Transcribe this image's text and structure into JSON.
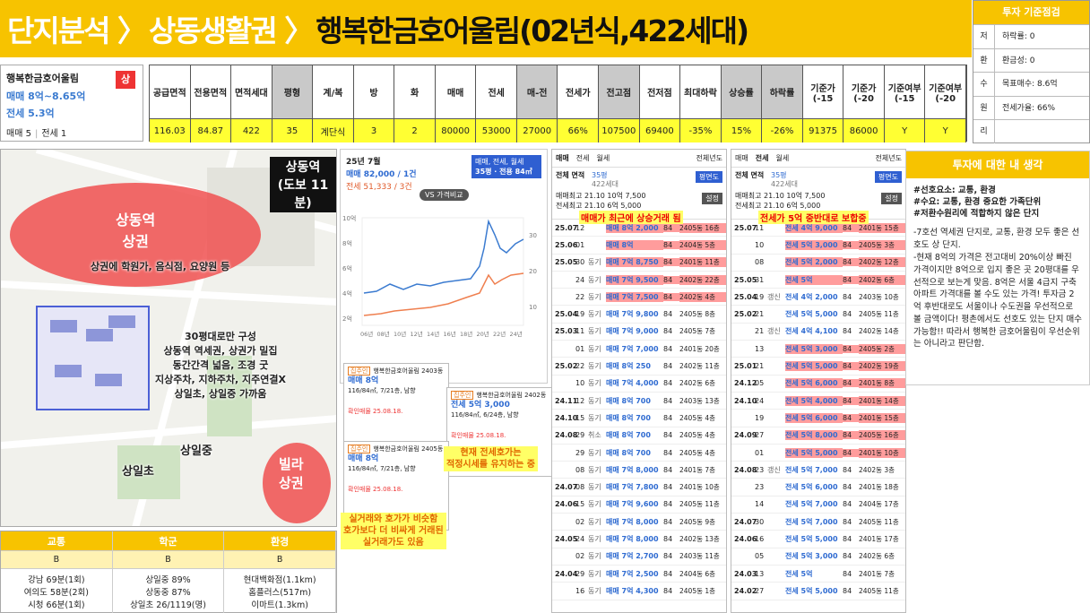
{
  "header": {
    "crumbs": [
      "단지분석 〉",
      "상동생활권 〉",
      "행복한금호어울림(02년식,422세대)"
    ]
  },
  "criteria": {
    "title": "투자 기준점검",
    "rows": [
      {
        "label": "저",
        "value": "하락률: 0"
      },
      {
        "label": "환",
        "value": "환금성: 0"
      },
      {
        "label": "수",
        "value": "목표매수: 8.6억"
      },
      {
        "label": "원",
        "value": "전세가율: 66%"
      },
      {
        "label": "리"
      }
    ]
  },
  "summary": {
    "name": "행복한금호어울림",
    "badge": "상",
    "sale": "매매 8억~8.65억",
    "jeonse": "전세 5.3억",
    "sale_count": "매매 5",
    "jeonse_count": "전세 1"
  },
  "spec_table": {
    "headers": [
      "공급면적",
      "전용면적",
      "면적세대",
      "평형",
      "계/복",
      "방",
      "화",
      "매매",
      "전세",
      "매-전",
      "전세가",
      "전고점",
      "전저점",
      "최대하락",
      "상승률",
      "하락률",
      "기준가(-15",
      "기준가(-20",
      "기준여부(-15",
      "기준여부(-20"
    ],
    "values": [
      "116.03",
      "84.87",
      "422",
      "35",
      "계단식",
      "3",
      "2",
      "80000",
      "53000",
      "27000",
      "66%",
      "107500",
      "69400",
      "-35%",
      "15%",
      "-26%",
      "91375",
      "86000",
      "Y",
      "Y"
    ]
  },
  "map": {
    "labels": [
      "상동역\n(도보 11분)",
      "상동역\n상권",
      "상권에 학원가, 음식점, 요양원 등",
      "30평대로만 구성\n상동역 역세권, 상권가 밀집\n동간간격 넓음, 조경 굿\n지상주차, 지하주차, 지주연결X\n상일초, 상일중 가까움",
      "상일중",
      "상일초",
      "빌라\n상권"
    ]
  },
  "scores": {
    "headers": [
      "교통",
      "학군",
      "환경"
    ],
    "grades": [
      "B",
      "B",
      "B"
    ],
    "details": [
      [
        "강남 69분(1회)",
        "여의도 58분(2회)",
        "시청 66분(1회)"
      ],
      [
        "상일중 89%",
        "상동중 87%",
        "상일초 26/1119(명)"
      ],
      [
        "현대백화점(1.1km)",
        "홈플러스(517m)",
        "이마트(1.3km)"
      ]
    ]
  },
  "price_chart": {
    "month": "25년 7월",
    "sale": "매매 82,000 / 1건",
    "jeonse": "전세 51,333 / 3건",
    "filter": "매매, 전세, 월세",
    "size": "35평 · 전용 84㎡",
    "compare": "VS 가격비교",
    "y_left": [
      "10억",
      "8억",
      "6억",
      "4억",
      "2억"
    ],
    "y_right": [
      "30",
      "20",
      "10"
    ],
    "x_labels": [
      "06년",
      "08년",
      "10년",
      "12년",
      "14년",
      "16년",
      "18년",
      "20년",
      "22년",
      "24년"
    ]
  },
  "listings": [
    {
      "tag": "집주인",
      "title": "행복한금호어울림 2403동",
      "price": "매매 8억",
      "detail": "116/84㎡, 7/21층, 남향",
      "confirm": "확인매물 25.08.18."
    },
    {
      "tag": "집주인",
      "title": "행복한금호어울림 2402동",
      "price": "전세 5억 3,000",
      "detail": "116/84㎡, 6/24층, 남향",
      "confirm": "확인매물 25.08.18."
    },
    {
      "tag": "집주인",
      "title": "행복한금호어울림 2405동",
      "price": "매매 8억",
      "detail": "116/84㎡, 7/21층, 남향",
      "confirm": "확인매물 25.08.18."
    }
  ],
  "annotations": [
    "현재 전세호가는\n적정시세를 유지하는 중",
    "실거래와 호가가 비슷함\n호가보다 더 비싸게 거래된\n실거래가도 있음"
  ],
  "trades": [
    {
      "tabs": [
        "매매",
        "전세",
        "월세"
      ],
      "selected": 0,
      "period": "전체년도",
      "area": "전체 면적",
      "size": "35평",
      "households": "422세대",
      "button": "평면도",
      "max1": "매매최고 21.10 10억 7,500",
      "max2": "전세최고 21.10 6억 5,000",
      "setting": "설정",
      "note": "매매가 최근에 상승거래 됨",
      "rows": [
        {
          "month": "25.07",
          "day": "12",
          "price": "매매 8억 2,000",
          "area": "84",
          "unit": "2405동 16층",
          "hl": true
        },
        {
          "month": "25.06",
          "day": "01",
          "price": "매매 8억",
          "area": "84",
          "unit": "2404동 5층",
          "hl": true
        },
        {
          "month": "25.05",
          "day": "30",
          "tag": "동기",
          "price": "매매 7억 8,750",
          "area": "84",
          "unit": "2401동 11층",
          "hl": true
        },
        {
          "day": "24",
          "tag": "동기",
          "price": "매매 7억 9,500",
          "area": "84",
          "unit": "2402동 22층",
          "hl": true
        },
        {
          "day": "22",
          "tag": "동기",
          "price": "매매 7억 7,500",
          "area": "84",
          "unit": "2402동 4층",
          "hl": true
        },
        {
          "month": "25.04",
          "day": "19",
          "tag": "동기",
          "price": "매매 7억 9,800",
          "area": "84",
          "unit": "2405동 8층"
        },
        {
          "month": "25.03",
          "day": "11",
          "tag": "동기",
          "price": "매매 7억 9,000",
          "area": "84",
          "unit": "2405동 7층"
        },
        {
          "day": "01",
          "tag": "동기",
          "price": "매매 7억 7,000",
          "area": "84",
          "unit": "2401동 20층"
        },
        {
          "month": "25.02",
          "day": "22",
          "tag": "동기",
          "price": "매매 8억 250",
          "area": "84",
          "unit": "2402동 11층"
        },
        {
          "day": "10",
          "tag": "동기",
          "price": "매매 7억 4,000",
          "area": "84",
          "unit": "2402동 6층"
        },
        {
          "month": "24.11",
          "day": "12",
          "tag": "동기",
          "price": "매매 8억 700",
          "area": "84",
          "unit": "2403동 13층"
        },
        {
          "month": "24.10",
          "day": "15",
          "tag": "동기",
          "price": "매매 8억 700",
          "area": "84",
          "unit": "2405동 4층"
        },
        {
          "month": "24.08",
          "day": "29",
          "tag": "취소",
          "price": "매매 8억 700",
          "area": "84",
          "unit": "2405동 4층"
        },
        {
          "day": "29",
          "tag": "동기",
          "price": "매매 8억 700",
          "area": "84",
          "unit": "2405동 4층"
        },
        {
          "day": "08",
          "tag": "동기",
          "price": "매매 7억 8,000",
          "area": "84",
          "unit": "2401동 7층"
        },
        {
          "month": "24.07",
          "day": "08",
          "tag": "동기",
          "price": "매매 7억 7,800",
          "area": "84",
          "unit": "2401동 10층"
        },
        {
          "month": "24.06",
          "day": "15",
          "tag": "동기",
          "price": "매매 7억 9,600",
          "area": "84",
          "unit": "2405동 11층"
        },
        {
          "day": "02",
          "tag": "동기",
          "price": "매매 7억 8,000",
          "area": "84",
          "unit": "2405동 9층"
        },
        {
          "month": "24.05",
          "day": "24",
          "tag": "동기",
          "price": "매매 7억 8,000",
          "area": "84",
          "unit": "2402동 13층"
        },
        {
          "day": "02",
          "tag": "동기",
          "price": "매매 7억 2,700",
          "area": "84",
          "unit": "2403동 11층"
        },
        {
          "month": "24.04",
          "day": "29",
          "tag": "동기",
          "price": "매매 7억 2,500",
          "area": "84",
          "unit": "2404동 6층"
        },
        {
          "day": "16",
          "tag": "동기",
          "price": "매매 7억 4,300",
          "area": "84",
          "unit": "2405동 1층"
        }
      ]
    },
    {
      "tabs": [
        "매매",
        "전세",
        "월세"
      ],
      "selected": 1,
      "period": "전체년도",
      "area": "전체 면적",
      "size": "35평",
      "households": "422세대",
      "button": "평면도",
      "max1": "매매최고 21.10 10억 7,500",
      "max2": "전세최고 21.10 6억 5,000",
      "setting": "설정",
      "note": "전세가 5억 중반대로 보합중",
      "rows": [
        {
          "month": "25.07",
          "day": "11",
          "price": "전세 4억 9,000",
          "area": "84",
          "unit": "2401동 15층",
          "hl": true
        },
        {
          "day": "10",
          "price": "전세 5억 3,000",
          "area": "84",
          "unit": "2405동 3층",
          "hl": true
        },
        {
          "day": "08",
          "price": "전세 5억 2,000",
          "area": "84",
          "unit": "2402동 12층",
          "hl": true
        },
        {
          "month": "25.05",
          "day": "31",
          "price": "전세 5억",
          "area": "84",
          "unit": "2402동 6층",
          "hl": true
        },
        {
          "month": "25.04",
          "day": "19",
          "tag": "갱신",
          "price": "전세 4억 2,000",
          "area": "84",
          "unit": "2403동 10층"
        },
        {
          "month": "25.02",
          "day": "21",
          "price": "전세 5억 5,000",
          "area": "84",
          "unit": "2405동 11층"
        },
        {
          "day": "21",
          "tag": "갱신",
          "price": "전세 4억 4,100",
          "area": "84",
          "unit": "2402동 14층"
        },
        {
          "day": "13",
          "price": "전세 5억 3,000",
          "area": "84",
          "unit": "2405동 2층",
          "hl": true
        },
        {
          "month": "25.01",
          "day": "21",
          "price": "전세 5억 5,000",
          "area": "84",
          "unit": "2402동 19층",
          "hl": true
        },
        {
          "month": "24.12",
          "day": "05",
          "price": "전세 5억 6,000",
          "area": "84",
          "unit": "2401동 8층",
          "hl": true
        },
        {
          "month": "24.10",
          "day": "24",
          "price": "전세 5억 4,000",
          "area": "84",
          "unit": "2401동 14층",
          "hl": true
        },
        {
          "day": "19",
          "price": "전세 5억 6,000",
          "area": "84",
          "unit": "2401동 15층",
          "hl": true
        },
        {
          "month": "24.09",
          "day": "27",
          "price": "전세 5억 8,000",
          "area": "84",
          "unit": "2405동 16층",
          "hl": true
        },
        {
          "day": "01",
          "price": "전세 5억 5,000",
          "area": "84",
          "unit": "2401동 10층",
          "hl": true
        },
        {
          "month": "24.08",
          "day": "23",
          "tag": "갱신",
          "price": "전세 5억 7,000",
          "area": "84",
          "unit": "2402동 3층"
        },
        {
          "day": "23",
          "price": "전세 5억 6,000",
          "area": "84",
          "unit": "2401동 18층"
        },
        {
          "day": "14",
          "price": "전세 5억 7,000",
          "area": "84",
          "unit": "2404동 17층"
        },
        {
          "month": "24.07",
          "day": "30",
          "price": "전세 5억 7,000",
          "area": "84",
          "unit": "2405동 11층"
        },
        {
          "month": "24.06",
          "day": "16",
          "price": "전세 5억 5,000",
          "area": "84",
          "unit": "2401동 17층"
        },
        {
          "day": "05",
          "price": "전세 5억 3,000",
          "area": "84",
          "unit": "2402동 6층"
        },
        {
          "month": "24.03",
          "day": "13",
          "price": "전세 5억",
          "area": "84",
          "unit": "2401동 7층"
        },
        {
          "month": "24.02",
          "day": "27",
          "price": "전세 5억 5,000",
          "area": "84",
          "unit": "2405동 11층"
        }
      ]
    }
  ],
  "thoughts": {
    "title": "투자에 대한 내 생각",
    "tags": [
      "#선호요소: 교통, 환경",
      "#수요: 교통, 환경 중요한 가족단위",
      "#저환수원리에 적합하지 않은 단지"
    ],
    "body": "-7호선 역세권 단지로, 교통, 환경 모두 좋은 선호도 상 단지.\n-현재 8억의 가격은 전고대비 20%이상 빠진 가격이지만 8억으로 입지 좋은 곳 20평대를 우선적으로 보는게 맞음. 8억은 서울 4급지 구축아파트 가격대를 볼 수도 있는 가격! 투자금 2억 후반대로도 서울이나 수도권을 우선적으로 볼 금액이다! 평촌에서도 선호도 있는 단지 매수 가능함!! 따라서 행복한 금호어울림이 우선순위는 아니라고 판단함."
  }
}
